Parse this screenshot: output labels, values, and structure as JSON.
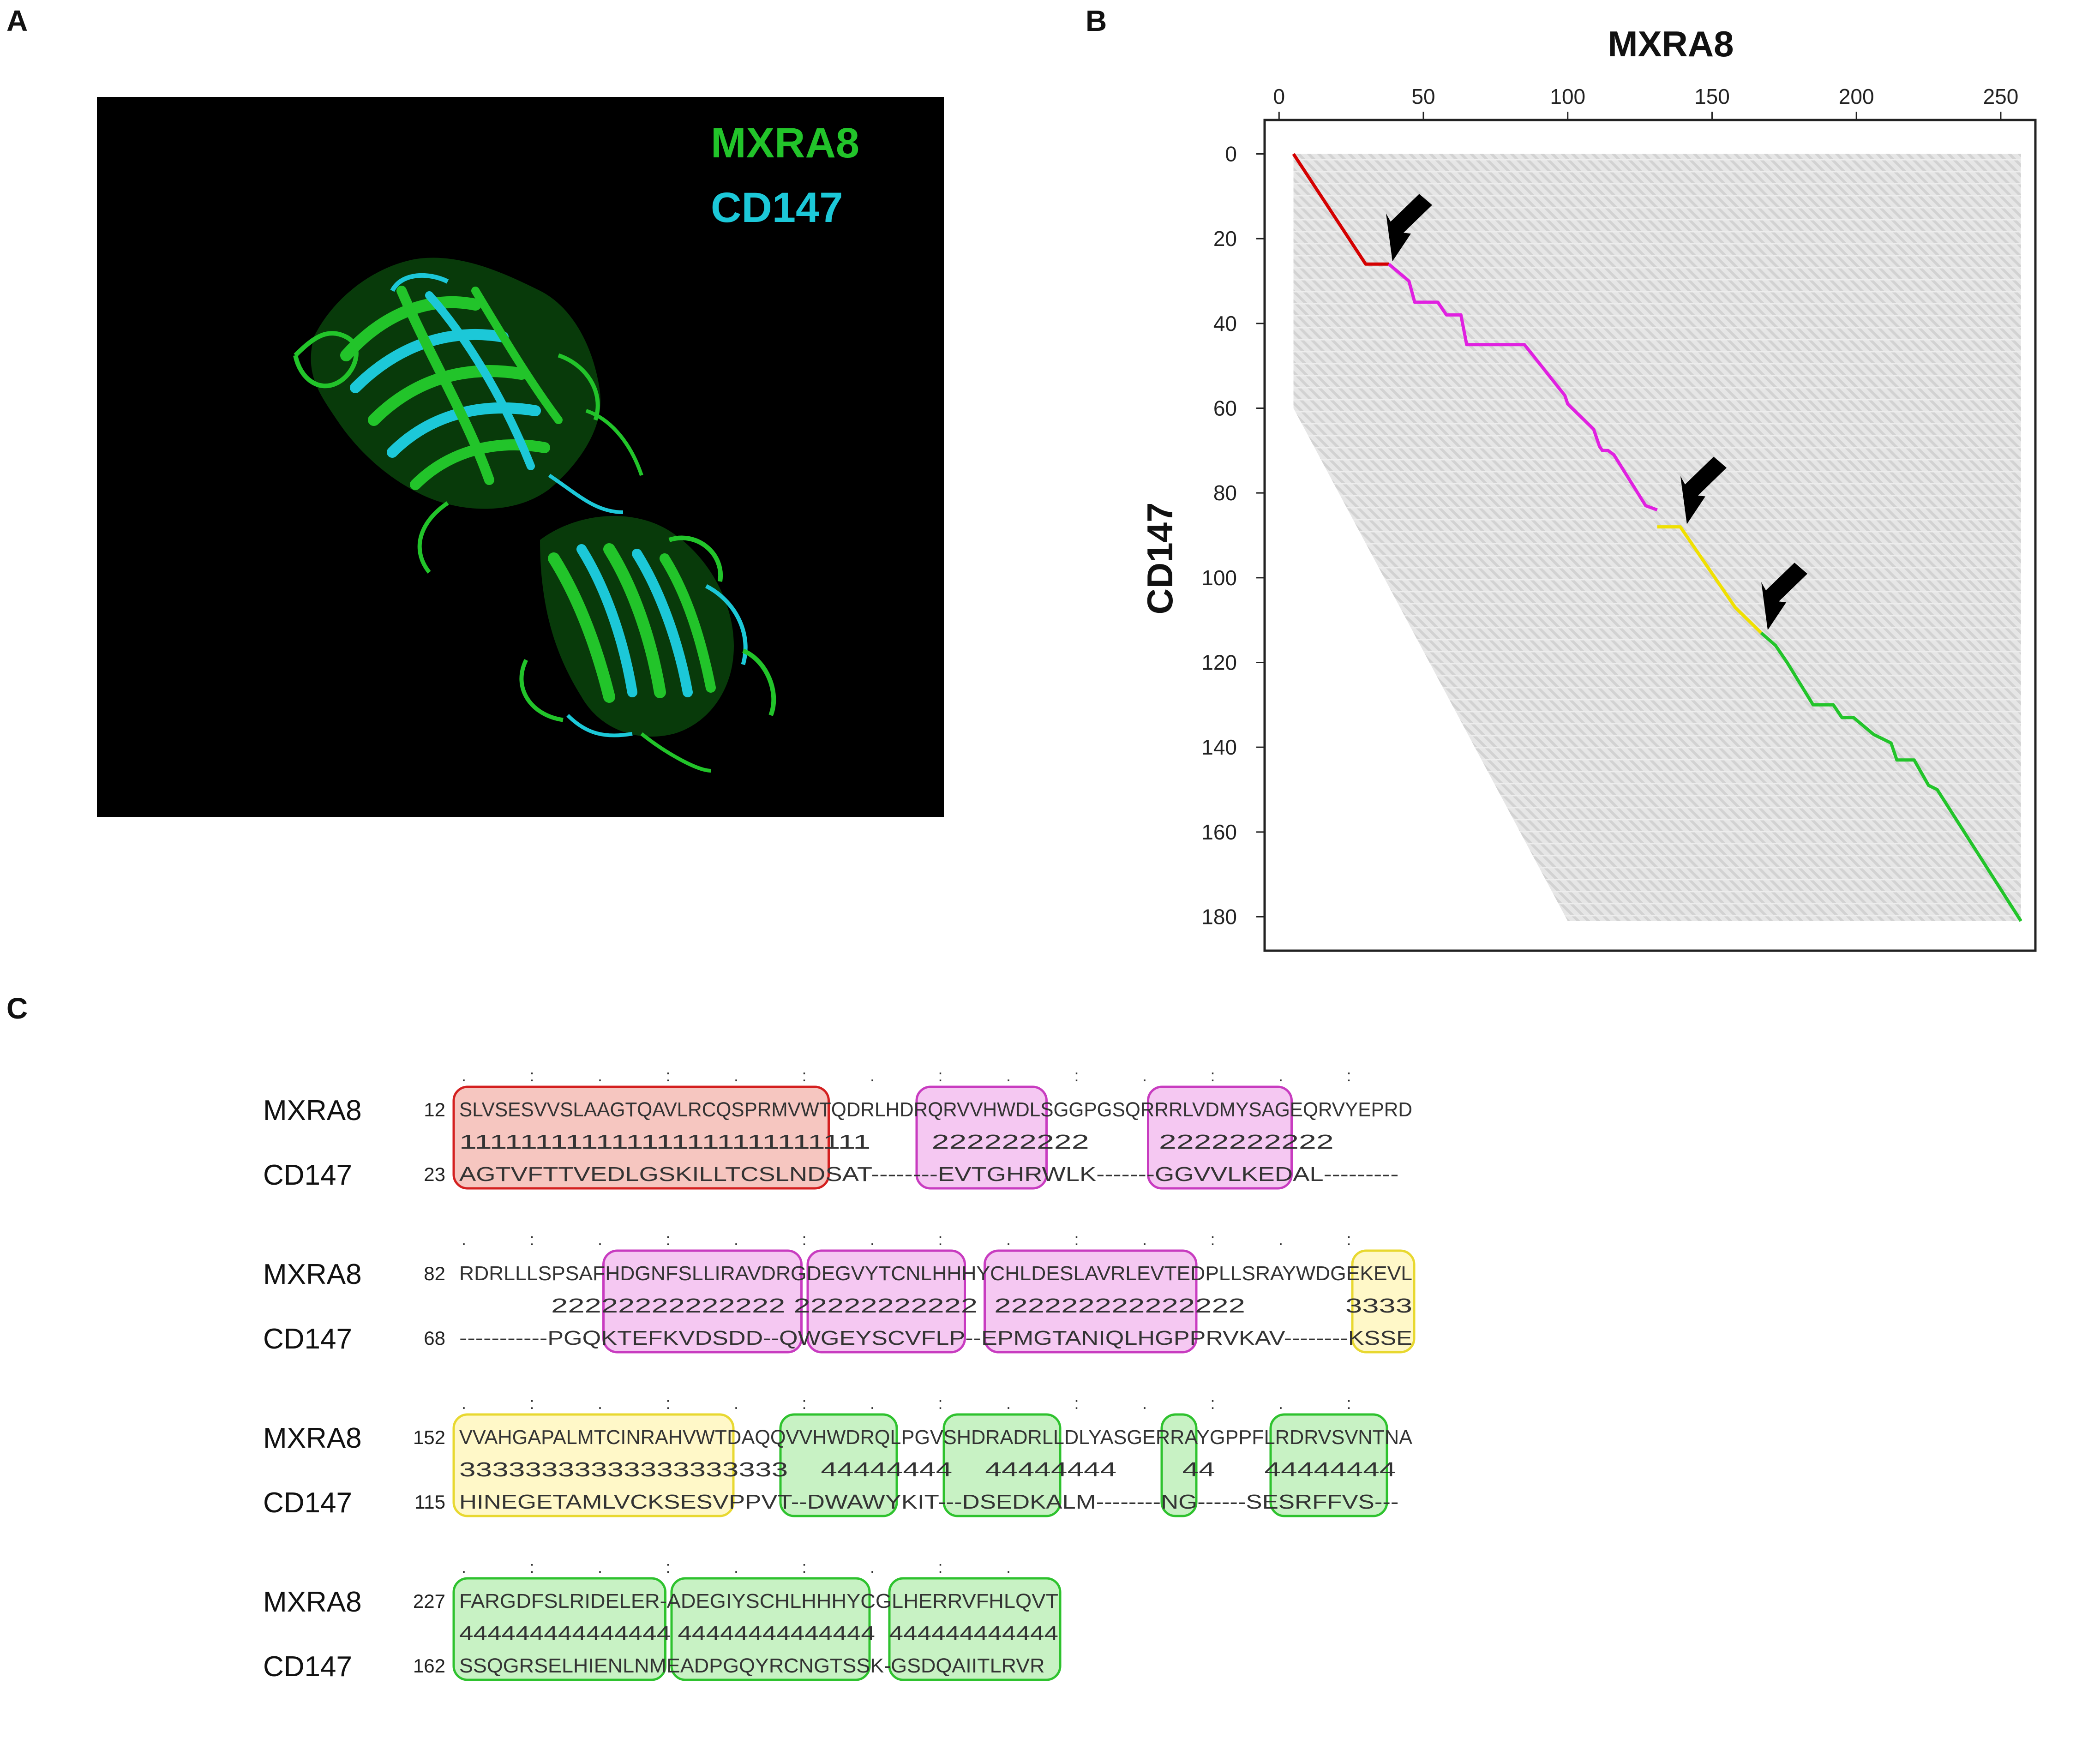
{
  "panel_labels": {
    "a": "A",
    "b": "B",
    "c": "C"
  },
  "panelA": {
    "legend": [
      {
        "label": "MXRA8",
        "color": "#22c42a"
      },
      {
        "label": "CD147",
        "color": "#1cc8d8"
      }
    ]
  },
  "panelB": {
    "title": "MXRA8",
    "ylabel": "CD147",
    "x_ticks": [
      "0",
      "50",
      "100",
      "150",
      "200",
      "250"
    ],
    "y_ticks": [
      "0",
      "20",
      "40",
      "60",
      "80",
      "100",
      "120",
      "140",
      "160",
      "180"
    ]
  },
  "chart_data": {
    "type": "line",
    "title": "MXRA8",
    "xlabel": "",
    "ylabel": "CD147",
    "xlim": [
      -5,
      262
    ],
    "ylim": [
      188,
      -8
    ],
    "y_inverted": true,
    "grid": false,
    "series": [
      {
        "color": "#d40000",
        "points": [
          [
            5,
            0
          ],
          [
            30,
            26
          ],
          [
            38,
            26
          ]
        ]
      },
      {
        "color": "#e020e0",
        "points": [
          [
            38,
            26
          ],
          [
            45,
            30
          ],
          [
            47,
            35
          ],
          [
            55,
            35
          ],
          [
            58,
            38
          ],
          [
            63,
            38
          ],
          [
            65,
            45
          ],
          [
            85,
            45
          ],
          [
            99,
            57
          ],
          [
            100,
            59
          ],
          [
            103,
            61
          ],
          [
            109,
            65
          ],
          [
            111,
            69
          ],
          [
            112,
            70
          ],
          [
            114,
            70
          ],
          [
            116,
            71
          ],
          [
            127,
            83
          ],
          [
            131,
            84
          ]
        ]
      },
      {
        "color": "#f0e000",
        "points": [
          [
            131,
            88
          ],
          [
            139,
            88
          ],
          [
            158,
            107
          ],
          [
            167,
            113
          ]
        ]
      },
      {
        "color": "#22c42a",
        "points": [
          [
            167,
            113
          ],
          [
            172,
            116
          ],
          [
            176,
            120
          ],
          [
            185,
            130
          ],
          [
            192,
            130
          ],
          [
            195,
            133
          ],
          [
            199,
            133
          ],
          [
            206,
            137
          ],
          [
            212,
            139
          ],
          [
            214,
            143
          ],
          [
            220,
            143
          ],
          [
            225,
            149
          ],
          [
            228,
            150
          ],
          [
            257,
            181
          ]
        ]
      }
    ],
    "annotations": [
      {
        "type": "arrow",
        "x": 38,
        "y": 26
      },
      {
        "type": "arrow",
        "x": 140,
        "y": 88
      },
      {
        "type": "arrow",
        "x": 168,
        "y": 113
      }
    ]
  },
  "panelC": {
    "top_label": "MXRA8",
    "bottom_label": "CD147",
    "blocks": [
      {
        "top_start": "12",
        "bot_start": "23",
        "top_seq": "SLVSESVVSLAAGTQAVLRCQSPRMVWTQDRLHDRQRVVHWDLSGGPGSQRRRLVDMYSAGEQRVYEPRD",
        "mid_seq": "111111111111111111111111111       222222222        2222222222         ",
        "bot_seq": "AGTVFTTVEDLGSKILLTCSLNDSAT--------EVTGHRWLK-------GGVVLKEDAL---------"
      },
      {
        "top_start": "82",
        "bot_start": "68",
        "top_seq": "RDRLLLSPSAFHDGNFSLLIRAVDRGDEGVYTCNLHHHYCHLDESLAVRLEVTEDPLLSRAYWDGEKEVL",
        "mid_seq": "           22222222222222 22222222222  222222222222222            3333",
        "bot_seq": "-----------PGQKTEFKVDSDD--QWGEYSCVFLP--EPMGTANIQLHGPPRVKAV--------KSSE"
      },
      {
        "top_start": "152",
        "bot_start": "115",
        "top_seq": "VVAHGAPALMTCINRAHVWTDAQQVVHWDRQLPGVSHDRADRLLDLYASGERRAYGPPFLRDRVSVNTNA",
        "mid_seq": "33333333333333333333    44444444    44444444        44      44444444  ",
        "bot_seq": "HINEGETAMLVCKSESVPPVT--DWAWYKIT---DSEDKALM--------NG------SESRFFVS---"
      },
      {
        "top_start": "227",
        "bot_start": "162",
        "top_seq": "FARGDFSLRIDELER-ADEGIYSCHLHHHYCGLHERRVFHLQVT",
        "mid_seq": "444444444444444 44444444444444  444444444444",
        "bot_seq": "SSQGRSELHIENLNMEADPGQYRCNGTSSK-GSDQAIITLRVR"
      }
    ]
  }
}
